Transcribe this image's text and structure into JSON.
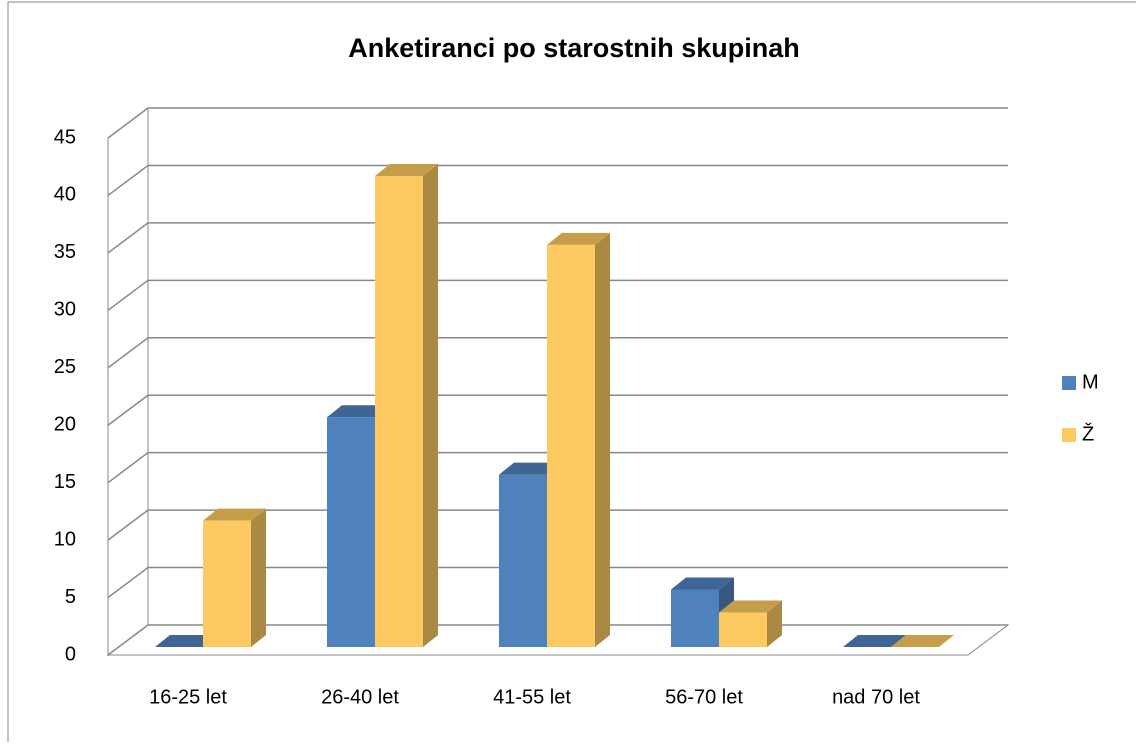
{
  "chart_data": {
    "type": "bar3d",
    "title": "Anketiranci po starostnih skupinah",
    "categories": [
      "16-25 let",
      "26-40 let",
      "41-55 let",
      "56-70 let",
      "nad 70 let"
    ],
    "series": [
      {
        "name": "M",
        "color": "#4f81bd",
        "values": [
          0,
          20,
          15,
          5,
          0
        ]
      },
      {
        "name": "Ž",
        "color": "#fdca62",
        "values": [
          11,
          41,
          35,
          3,
          0
        ]
      }
    ],
    "ylim": [
      0,
      45
    ],
    "yticks": [
      0,
      5,
      10,
      15,
      20,
      25,
      30,
      35,
      40,
      45
    ],
    "grid": true,
    "legend": "right"
  }
}
